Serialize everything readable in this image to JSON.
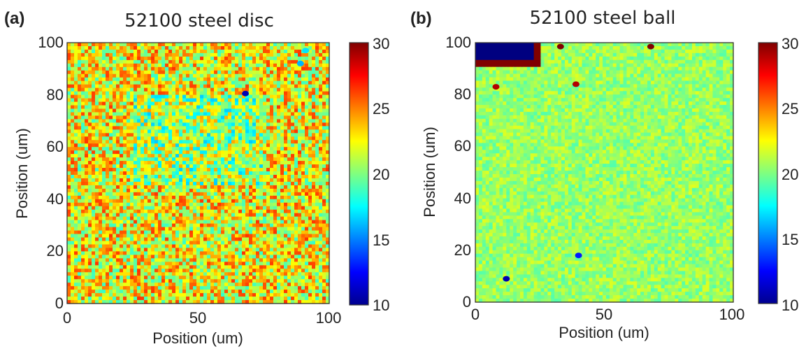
{
  "chart_data": [
    {
      "type": "heatmap",
      "panel_label": "(a)",
      "title": "52100 steel disc",
      "xlabel": "Position (um)",
      "ylabel": "Position (um)",
      "xlim": [
        0,
        100
      ],
      "ylim": [
        0,
        100
      ],
      "xticks": [
        "0",
        "50",
        "100"
      ],
      "yticks": [
        "0",
        "20",
        "40",
        "60",
        "80",
        "100"
      ],
      "colorbar": {
        "ticks": [
          "10",
          "15",
          "20",
          "25",
          "30"
        ],
        "range": [
          10,
          30
        ]
      },
      "base_value": 22.5,
      "noise": 4.0,
      "regions": [
        {
          "x": [
            0,
            100
          ],
          "y": [
            0,
            100
          ],
          "value": 22.5
        },
        {
          "x": [
            25,
            75
          ],
          "y": [
            45,
            80
          ],
          "value": 20.5
        }
      ],
      "spots": [
        {
          "x": 68,
          "y": 80.5,
          "value": 11
        },
        {
          "x": 91,
          "y": 97,
          "value": 17
        },
        {
          "x": 89,
          "y": 92,
          "value": 16
        }
      ]
    },
    {
      "type": "heatmap",
      "panel_label": "(b)",
      "title": "52100 steel ball",
      "xlabel": "Position (um)",
      "ylabel": "Position (um)",
      "xlim": [
        0,
        100
      ],
      "ylim": [
        0,
        100
      ],
      "xticks": [
        "0",
        "50",
        "100"
      ],
      "yticks": [
        "0",
        "20",
        "40",
        "60",
        "80",
        "100"
      ],
      "colorbar": {
        "ticks": [
          "10",
          "15",
          "20",
          "25",
          "30"
        ],
        "range": [
          10,
          30
        ]
      },
      "base_value": 20.5,
      "noise": 1.4,
      "regions": [
        {
          "x": [
            0,
            100
          ],
          "y": [
            0,
            100
          ],
          "value": 20.5
        }
      ],
      "spots": [
        {
          "x": 12,
          "y": 9,
          "value": 11
        },
        {
          "x": 40,
          "y": 18,
          "value": 13
        },
        {
          "x": 68,
          "y": 98.5,
          "value": 30
        },
        {
          "x": 33,
          "y": 98.5,
          "value": 30
        },
        {
          "x": 8,
          "y": 83,
          "value": 29
        },
        {
          "x": 39,
          "y": 84,
          "value": 29
        }
      ],
      "corner_defect": {
        "x": [
          0,
          25
        ],
        "y": [
          91,
          100
        ],
        "value": 10
      }
    }
  ]
}
